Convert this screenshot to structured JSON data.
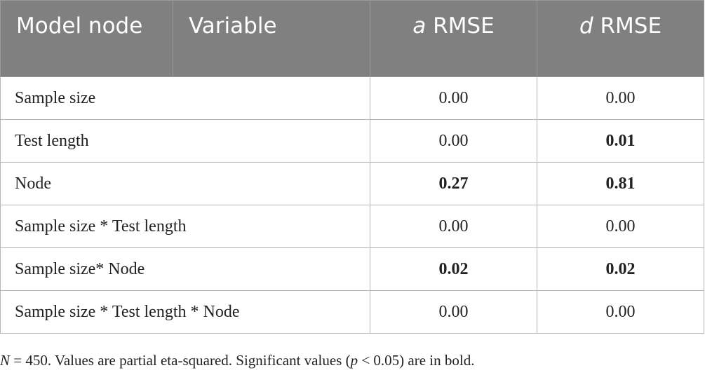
{
  "table": {
    "headers": {
      "model_node": "Model node",
      "variable": "Variable",
      "a_rmse_italic": "a",
      "a_rmse_rest": " RMSE",
      "d_rmse_italic": "d",
      "d_rmse_rest": " RMSE"
    },
    "rows": [
      {
        "label": "Sample size",
        "a": "0.00",
        "d": "0.00",
        "a_bold": false,
        "d_bold": false
      },
      {
        "label": "Test length",
        "a": "0.00",
        "d": "0.01",
        "a_bold": false,
        "d_bold": true
      },
      {
        "label": "Node",
        "a": "0.27",
        "d": "0.81",
        "a_bold": true,
        "d_bold": true
      },
      {
        "label": "Sample size * Test length",
        "a": "0.00",
        "d": "0.00",
        "a_bold": false,
        "d_bold": false
      },
      {
        "label": "Sample size* Node",
        "a": "0.02",
        "d": "0.02",
        "a_bold": true,
        "d_bold": true
      },
      {
        "label": "Sample size * Test length * Node",
        "a": "0.00",
        "d": "0.00",
        "a_bold": false,
        "d_bold": false
      }
    ]
  },
  "footnote": {
    "n_italic": "N",
    "part1": " = 450. Values are partial eta-squared. Significant values (",
    "p_italic": "p",
    "part2": " < 0.05) are in bold."
  },
  "colors": {
    "header_bg": "#808080",
    "header_text": "#ffffff",
    "border": "#b5b5b5"
  }
}
